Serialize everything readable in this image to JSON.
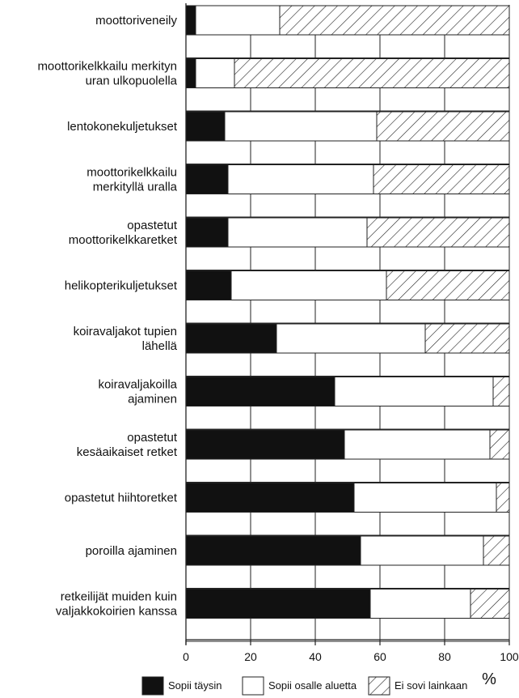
{
  "chart_data": {
    "type": "bar",
    "stacked": true,
    "orientation": "horizontal",
    "categories": [
      [
        "moottoriveneily"
      ],
      [
        "moottorikelkkailu merkityn",
        "uran ulkopuolella"
      ],
      [
        "lentokonekuljetukset"
      ],
      [
        "moottorikelkkailu",
        "merkityllä uralla"
      ],
      [
        "opastetut",
        "moottorikelkkaretket"
      ],
      [
        "helikopterikuljetukset"
      ],
      [
        "koiravaljakot tupien",
        "lähellä"
      ],
      [
        "koiravaljakoilla",
        "ajaminen"
      ],
      [
        "opastetut",
        "kesäaikaiset retket"
      ],
      [
        "opastetut hiihtoretket"
      ],
      [
        "poroilla ajaminen"
      ],
      [
        "retkeilijät muiden kuin",
        "valjakkokoirien kanssa"
      ]
    ],
    "series": [
      {
        "name": "Sopii täysin",
        "values": [
          3,
          3,
          12,
          13,
          13,
          14,
          28,
          46,
          49,
          52,
          54,
          57
        ]
      },
      {
        "name": "Sopii osalle aluetta",
        "values": [
          26,
          12,
          47,
          45,
          43,
          48,
          46,
          49,
          45,
          44,
          38,
          31
        ]
      },
      {
        "name": "Ei sovi lainkaan",
        "values": [
          71,
          85,
          41,
          42,
          44,
          38,
          26,
          5,
          6,
          4,
          8,
          12
        ]
      }
    ],
    "xlabel": "%",
    "xlim": [
      0,
      100
    ],
    "xticks": [
      0,
      20,
      40,
      60,
      80,
      100
    ],
    "grid": true,
    "legend_position": "bottom",
    "colors": {
      "full": "#111111",
      "partial": "#ffffff",
      "none_hatch": "#222222",
      "outline": "#222222"
    }
  }
}
